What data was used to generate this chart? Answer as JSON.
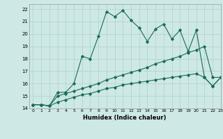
{
  "xlabel": "Humidex (Indice chaleur)",
  "background_color": "#cde8e5",
  "grid_color": "#aed0cc",
  "line_color": "#1a6b5a",
  "xlim": [
    -0.5,
    23
  ],
  "ylim": [
    14,
    22.4
  ],
  "xticks": [
    0,
    1,
    2,
    3,
    4,
    5,
    6,
    7,
    8,
    9,
    10,
    11,
    12,
    13,
    14,
    15,
    16,
    17,
    18,
    19,
    20,
    21,
    22,
    23
  ],
  "yticks": [
    14,
    15,
    16,
    17,
    18,
    19,
    20,
    21,
    22
  ],
  "series1_x": [
    0,
    1,
    2,
    3,
    4,
    5,
    6,
    7,
    8,
    9,
    10,
    11,
    12,
    13,
    14,
    15,
    16,
    17,
    18,
    19,
    20,
    21,
    22,
    23
  ],
  "series1_y": [
    14.3,
    14.3,
    14.2,
    15.3,
    15.3,
    16.0,
    18.2,
    18.0,
    19.8,
    21.8,
    21.4,
    21.9,
    21.1,
    20.5,
    19.4,
    20.4,
    20.8,
    19.6,
    20.3,
    18.6,
    20.3,
    16.5,
    15.8,
    16.5
  ],
  "series2_x": [
    0,
    1,
    2,
    3,
    4,
    5,
    6,
    7,
    8,
    9,
    10,
    11,
    12,
    13,
    14,
    15,
    16,
    17,
    18,
    19,
    20,
    21,
    22,
    23
  ],
  "series2_y": [
    14.3,
    14.3,
    14.2,
    15.0,
    15.2,
    15.4,
    15.6,
    15.8,
    16.0,
    16.3,
    16.5,
    16.7,
    16.9,
    17.1,
    17.3,
    17.6,
    17.8,
    18.0,
    18.2,
    18.5,
    18.7,
    19.0,
    16.5,
    16.5
  ],
  "series3_x": [
    0,
    1,
    2,
    3,
    4,
    5,
    6,
    7,
    8,
    9,
    10,
    11,
    12,
    13,
    14,
    15,
    16,
    17,
    18,
    19,
    20,
    21,
    22,
    23
  ],
  "series3_y": [
    14.3,
    14.3,
    14.2,
    14.5,
    14.7,
    14.9,
    15.1,
    15.2,
    15.4,
    15.6,
    15.7,
    15.9,
    16.0,
    16.1,
    16.2,
    16.3,
    16.4,
    16.5,
    16.6,
    16.7,
    16.8,
    16.5,
    15.8,
    16.5
  ]
}
